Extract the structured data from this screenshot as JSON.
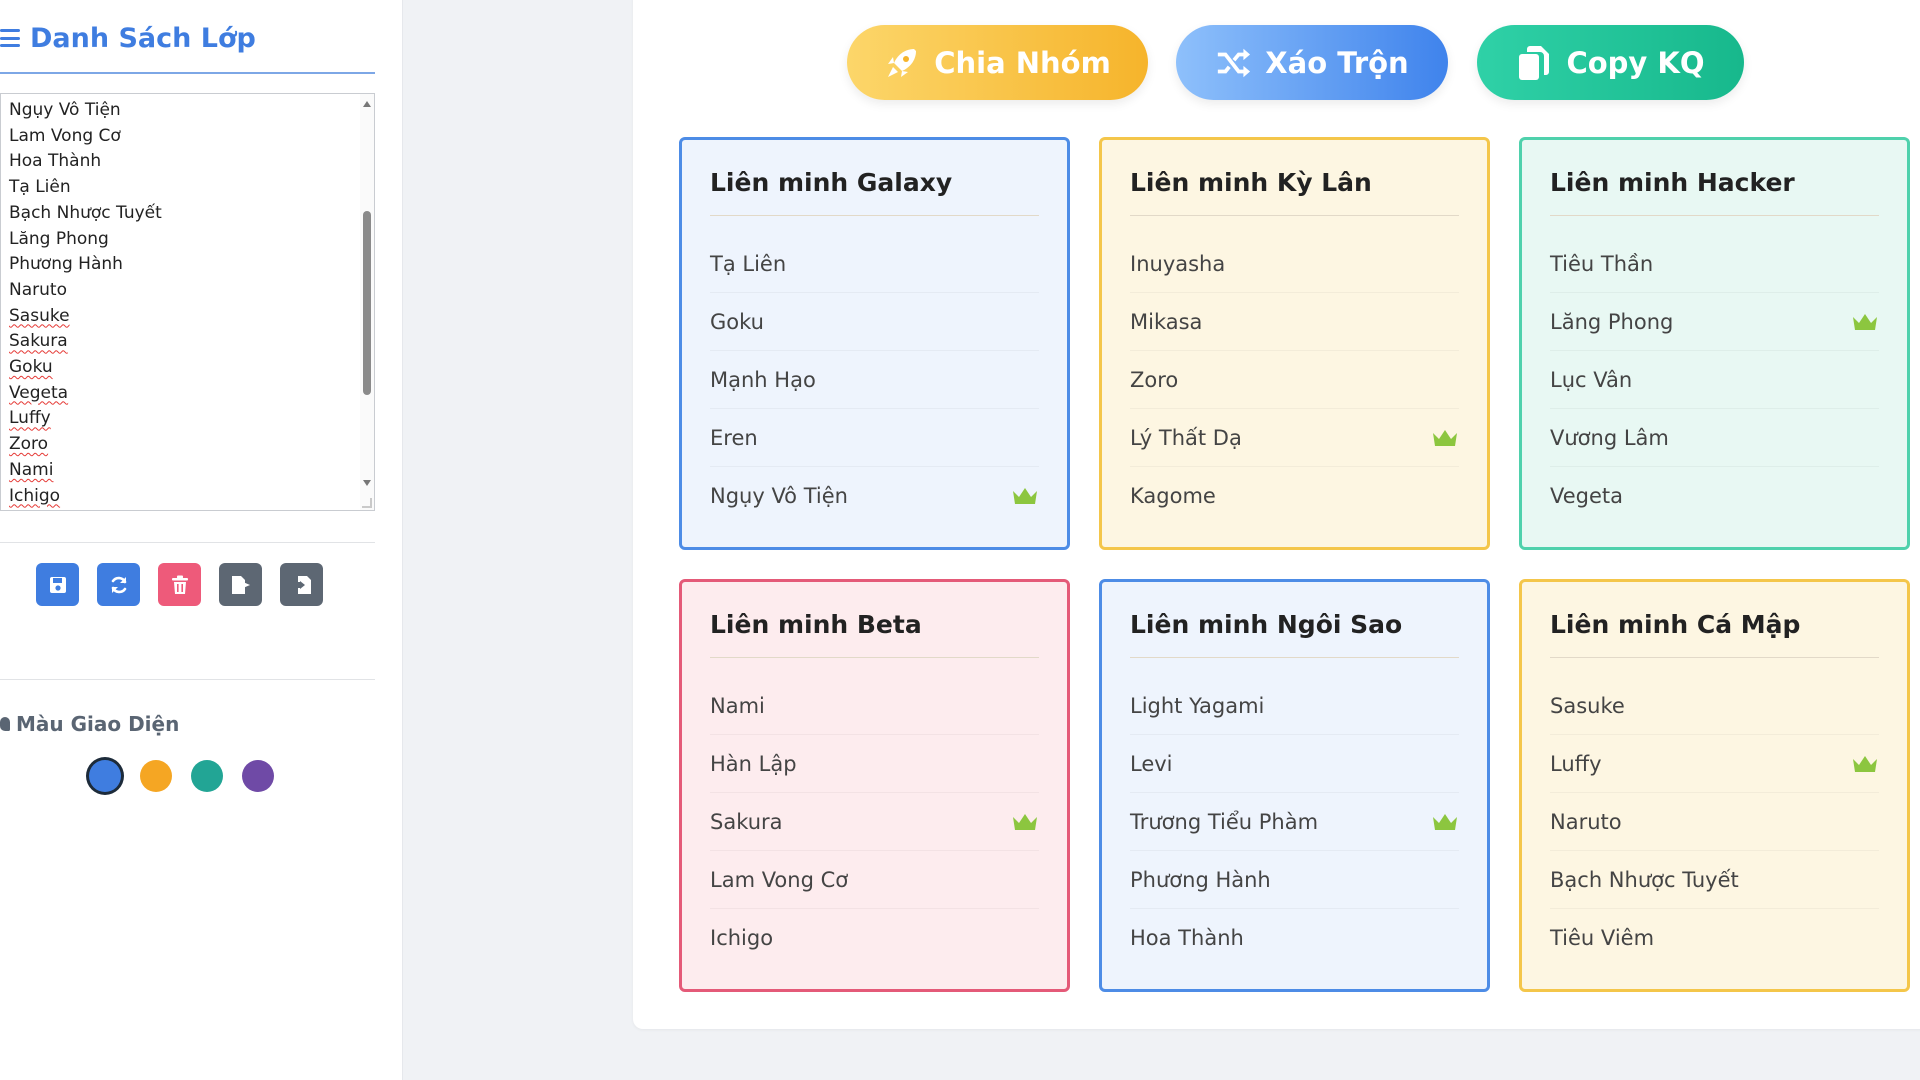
{
  "sidebar": {
    "title": "Danh Sách Lớp",
    "names": [
      {
        "name": "Ngụy Vô Tiện",
        "flagged": false
      },
      {
        "name": "Lam Vong Cơ",
        "flagged": false
      },
      {
        "name": "Hoa Thành",
        "flagged": false
      },
      {
        "name": "Tạ Liên",
        "flagged": false
      },
      {
        "name": "Bạch Nhược Tuyết",
        "flagged": false
      },
      {
        "name": "Lăng Phong",
        "flagged": false
      },
      {
        "name": "Phương Hành",
        "flagged": false
      },
      {
        "name": "Naruto",
        "flagged": false
      },
      {
        "name": "Sasuke",
        "flagged": true
      },
      {
        "name": "Sakura",
        "flagged": true
      },
      {
        "name": "Goku",
        "flagged": true
      },
      {
        "name": "Vegeta",
        "flagged": true
      },
      {
        "name": "Luffy",
        "flagged": true
      },
      {
        "name": "Zoro",
        "flagged": true
      },
      {
        "name": "Nami",
        "flagged": true
      },
      {
        "name": "Ichigo",
        "flagged": true
      }
    ],
    "tools": [
      {
        "icon": "save-icon",
        "color": "#3f7de0"
      },
      {
        "icon": "refresh-icon",
        "color": "#3f7de0"
      },
      {
        "icon": "trash-icon",
        "color": "#ee5a7a"
      },
      {
        "icon": "export-icon",
        "color": "#5d6773"
      },
      {
        "icon": "import-icon",
        "color": "#5d6773"
      }
    ],
    "theme_label": "Màu Giao Diện",
    "theme_colors": [
      {
        "color": "#3f7de0",
        "active": true
      },
      {
        "color": "#f5a623",
        "active": false
      },
      {
        "color": "#22a595",
        "active": false
      },
      {
        "color": "#6f4aa6",
        "active": false
      }
    ]
  },
  "toolbar": {
    "chia_nhom": "Chia Nhóm",
    "xao_tron": "Xáo Trộn",
    "copy_kq": "Copy KQ"
  },
  "groups": [
    {
      "title": "Liên minh Galaxy",
      "theme": "blue",
      "members": [
        {
          "name": "Tạ Liên",
          "leader": false
        },
        {
          "name": "Goku",
          "leader": false
        },
        {
          "name": "Mạnh Hạo",
          "leader": false
        },
        {
          "name": "Eren",
          "leader": false
        },
        {
          "name": "Ngụy Vô Tiện",
          "leader": true
        }
      ]
    },
    {
      "title": "Liên minh Kỳ Lân",
      "theme": "yellow",
      "members": [
        {
          "name": "Inuyasha",
          "leader": false
        },
        {
          "name": "Mikasa",
          "leader": false
        },
        {
          "name": "Zoro",
          "leader": false
        },
        {
          "name": "Lý Thất Dạ",
          "leader": true
        },
        {
          "name": "Kagome",
          "leader": false
        }
      ]
    },
    {
      "title": "Liên minh Hacker",
      "theme": "green",
      "members": [
        {
          "name": "Tiêu Thần",
          "leader": false
        },
        {
          "name": "Lăng Phong",
          "leader": true
        },
        {
          "name": "Lục Vân",
          "leader": false
        },
        {
          "name": "Vương Lâm",
          "leader": false
        },
        {
          "name": "Vegeta",
          "leader": false
        }
      ]
    },
    {
      "title": "Liên minh Beta",
      "theme": "pink",
      "members": [
        {
          "name": "Nami",
          "leader": false
        },
        {
          "name": "Hàn Lập",
          "leader": false
        },
        {
          "name": "Sakura",
          "leader": true
        },
        {
          "name": "Lam Vong Cơ",
          "leader": false
        },
        {
          "name": "Ichigo",
          "leader": false
        }
      ]
    },
    {
      "title": "Liên minh Ngôi Sao",
      "theme": "blue",
      "members": [
        {
          "name": "Light Yagami",
          "leader": false
        },
        {
          "name": "Levi",
          "leader": false
        },
        {
          "name": "Trương Tiểu Phàm",
          "leader": true
        },
        {
          "name": "Phương Hành",
          "leader": false
        },
        {
          "name": "Hoa Thành",
          "leader": false
        }
      ]
    },
    {
      "title": "Liên minh Cá Mập",
      "theme": "yellow",
      "members": [
        {
          "name": "Sasuke",
          "leader": false
        },
        {
          "name": "Luffy",
          "leader": true
        },
        {
          "name": "Naruto",
          "leader": false
        },
        {
          "name": "Bạch Nhược Tuyết",
          "leader": false
        },
        {
          "name": "Tiêu Viêm",
          "leader": false
        }
      ]
    }
  ],
  "colors": {
    "accent": "#3f7de0",
    "crown": "#8cc63f"
  }
}
